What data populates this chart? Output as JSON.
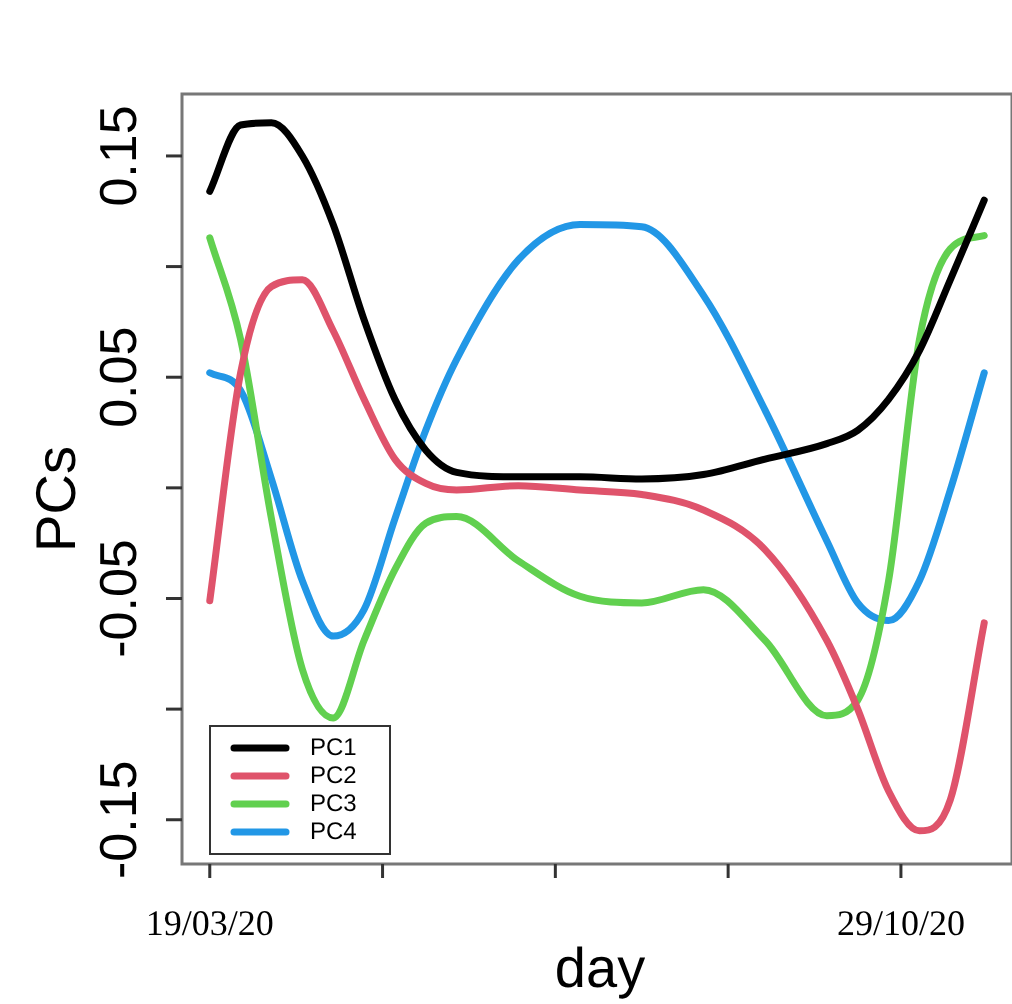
{
  "chart_data": {
    "type": "line",
    "xlabel": "day",
    "ylabel": "PCs",
    "x": [
      "2020-03-19",
      "2020-03-29",
      "2020-04-08",
      "2020-04-18",
      "2020-04-28",
      "2020-05-08",
      "2020-05-18",
      "2020-05-28",
      "2020-06-07",
      "2020-06-27",
      "2020-07-17",
      "2020-08-06",
      "2020-08-26",
      "2020-09-15",
      "2020-10-05",
      "2020-10-15",
      "2020-10-25",
      "2020-11-04",
      "2020-11-14",
      "2020-11-25"
    ],
    "series": [
      {
        "name": "PC1",
        "color": "#000000",
        "values": [
          0.134,
          0.164,
          0.165,
          0.15,
          0.119,
          0.076,
          0.04,
          0.017,
          0.007,
          0.005,
          0.005,
          0.004,
          0.006,
          0.013,
          0.02,
          0.026,
          0.04,
          0.062,
          0.094,
          0.13
        ]
      },
      {
        "name": "PC2",
        "color": "#df536b",
        "values": [
          -0.051,
          0.052,
          0.091,
          0.094,
          0.071,
          0.04,
          0.013,
          0.002,
          -0.001,
          0.001,
          -0.001,
          -0.003,
          -0.01,
          -0.028,
          -0.069,
          -0.1,
          -0.137,
          -0.155,
          -0.141,
          -0.061
        ]
      },
      {
        "name": "PC3",
        "color": "#61d04f",
        "values": [
          0.113,
          0.067,
          -0.014,
          -0.082,
          -0.104,
          -0.069,
          -0.037,
          -0.016,
          -0.013,
          -0.033,
          -0.049,
          -0.052,
          -0.046,
          -0.069,
          -0.103,
          -0.096,
          -0.042,
          0.067,
          0.108,
          0.114
        ]
      },
      {
        "name": "PC4",
        "color": "#2297e6",
        "values": [
          0.052,
          0.044,
          0.004,
          -0.042,
          -0.067,
          -0.055,
          -0.014,
          0.026,
          0.058,
          0.103,
          0.119,
          0.118,
          0.087,
          0.035,
          -0.024,
          -0.052,
          -0.06,
          -0.042,
          -0.001,
          0.052
        ]
      }
    ],
    "xlim": [
      "2020-03-10",
      "2020-12-04"
    ],
    "xticks": [
      {
        "value": "2020-03-19",
        "label": "19/03/20"
      },
      {
        "value": "2020-05-14",
        "label": null
      },
      {
        "value": "2020-07-09",
        "label": null
      },
      {
        "value": "2020-09-03",
        "label": null
      },
      {
        "value": "2020-10-29",
        "label": "29/10/20"
      }
    ],
    "ylim": [
      -0.17,
      0.178
    ],
    "yticks": [
      {
        "value": -0.15,
        "label": "-0.15"
      },
      {
        "value": -0.1,
        "label": null
      },
      {
        "value": -0.05,
        "label": "-0.05"
      },
      {
        "value": 0,
        "label": null
      },
      {
        "value": 0.05,
        "label": "0.05"
      },
      {
        "value": 0.1,
        "label": null
      },
      {
        "value": 0.15,
        "label": "0.15"
      }
    ],
    "legend": "bottom left",
    "grid": false
  }
}
